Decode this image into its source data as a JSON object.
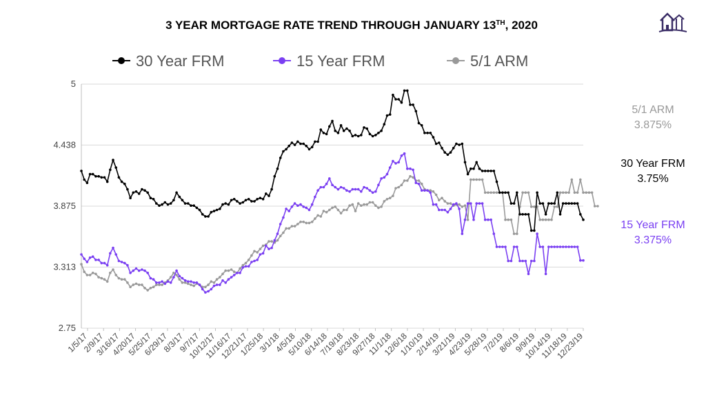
{
  "title": {
    "main": "3 YEAR MORTGAGE RATE TREND THROUGH JANUARY 13",
    "sup": "TH",
    "tail": ", 2020"
  },
  "logo_icon": "house-logo-icon",
  "colors": {
    "series_30": "#000000",
    "series_15": "#7a3ff2",
    "series_arm": "#999999",
    "grid": "#d9d9d9"
  },
  "side_labels": [
    {
      "name": "5/1 ARM",
      "value": "3.875%",
      "color": "#999999"
    },
    {
      "name": "30 Year FRM",
      "value": "3.75%",
      "color": "#000000"
    },
    {
      "name": "15 Year FRM",
      "value": "3.375%",
      "color": "#7a3ff2"
    }
  ],
  "chart_data": {
    "type": "line",
    "title": "3 YEAR MORTGAGE RATE TREND THROUGH JANUARY 13TH, 2020",
    "xlabel": "",
    "ylabel": "",
    "ylim": [
      2.75,
      5
    ],
    "yticks": [
      "5",
      "4.438",
      "3.875",
      "3.313",
      "2.75"
    ],
    "grid": "horizontal",
    "legend": "top",
    "x_tick_labels": [
      "1/5/17",
      "2/9/17",
      "3/16/17",
      "4/20/17",
      "5/25/17",
      "6/29/17",
      "8/3/17",
      "9/7/17",
      "10/12/17",
      "11/16/17",
      "12/21/17",
      "1/25/18",
      "3/1/18",
      "4/5/18",
      "5/10/18",
      "6/14/18",
      "7/19/18",
      "8/23/18",
      "9/27/18",
      "11/1/18",
      "12/6/18",
      "1/10/19",
      "2/14/19",
      "3/21/19",
      "4/23/19",
      "5/28/19",
      "7/2/19",
      "8/6/19",
      "9/9/19",
      "10/14/19",
      "11/18/19",
      "12/23/19"
    ],
    "series": [
      {
        "name": "30 Year FRM",
        "color": "#000000",
        "values": [
          4.2,
          4.12,
          4.09,
          4.17,
          4.17,
          4.15,
          4.15,
          4.14,
          4.14,
          4.1,
          4.21,
          4.3,
          4.23,
          4.14,
          4.1,
          4.08,
          4.03,
          3.95,
          4.0,
          4.01,
          3.99,
          4.03,
          4.02,
          4.0,
          3.95,
          3.94,
          3.9,
          3.88,
          3.89,
          3.91,
          3.89,
          3.9,
          3.93,
          4.0,
          3.96,
          3.93,
          3.9,
          3.9,
          3.88,
          3.88,
          3.86,
          3.84,
          3.8,
          3.78,
          3.78,
          3.82,
          3.83,
          3.84,
          3.85,
          3.89,
          3.9,
          3.89,
          3.93,
          3.94,
          3.92,
          3.9,
          3.91,
          3.93,
          3.94,
          3.92,
          3.92,
          3.94,
          3.95,
          3.94,
          3.99,
          3.97,
          4.03,
          4.15,
          4.22,
          4.32,
          4.38,
          4.4,
          4.43,
          4.46,
          4.44,
          4.47,
          4.45,
          4.45,
          4.43,
          4.4,
          4.42,
          4.47,
          4.47,
          4.58,
          4.55,
          4.54,
          4.61,
          4.66,
          4.57,
          4.55,
          4.62,
          4.57,
          4.59,
          4.57,
          4.52,
          4.53,
          4.52,
          4.53,
          4.6,
          4.59,
          4.54,
          4.52,
          4.53,
          4.55,
          4.57,
          4.63,
          4.71,
          4.72,
          4.9,
          4.86,
          4.86,
          4.83,
          4.94,
          4.94,
          4.81,
          4.81,
          4.75,
          4.64,
          4.62,
          4.55,
          4.55,
          4.55,
          4.51,
          4.45,
          4.46,
          4.41,
          4.37,
          4.35,
          4.37,
          4.41,
          4.45,
          4.44,
          4.45,
          4.28,
          4.17,
          4.22,
          4.22,
          4.28,
          4.22,
          4.2,
          4.2,
          4.2,
          4.2,
          4.2,
          4.1,
          4.0,
          4.0,
          4.0,
          4.0,
          3.9,
          3.9,
          4.0,
          3.8,
          3.8,
          3.8,
          3.8,
          3.65,
          3.65,
          4.0,
          3.9,
          3.9,
          3.8,
          3.9,
          3.9,
          3.9,
          4.0,
          3.8,
          3.9,
          3.9,
          3.9,
          3.9,
          3.9,
          3.9,
          3.8,
          3.75
        ]
      },
      {
        "name": "15 Year FRM",
        "color": "#7a3ff2",
        "values": [
          3.43,
          3.39,
          3.36,
          3.4,
          3.41,
          3.38,
          3.38,
          3.35,
          3.35,
          3.33,
          3.44,
          3.49,
          3.43,
          3.37,
          3.36,
          3.35,
          3.33,
          3.26,
          3.28,
          3.3,
          3.28,
          3.29,
          3.28,
          3.26,
          3.21,
          3.2,
          3.17,
          3.17,
          3.18,
          3.16,
          3.18,
          3.17,
          3.22,
          3.28,
          3.23,
          3.21,
          3.19,
          3.18,
          3.18,
          3.17,
          3.17,
          3.15,
          3.11,
          3.08,
          3.09,
          3.11,
          3.14,
          3.15,
          3.15,
          3.19,
          3.17,
          3.2,
          3.22,
          3.24,
          3.26,
          3.26,
          3.31,
          3.32,
          3.32,
          3.36,
          3.37,
          3.38,
          3.43,
          3.44,
          3.51,
          3.48,
          3.49,
          3.56,
          3.62,
          3.71,
          3.77,
          3.85,
          3.83,
          3.87,
          3.9,
          3.88,
          3.89,
          3.87,
          3.86,
          3.84,
          3.89,
          3.96,
          4.02,
          4.05,
          4.05,
          4.08,
          4.13,
          4.07,
          4.05,
          4.03,
          4.05,
          4.04,
          4.02,
          4.01,
          4.03,
          4.03,
          4.03,
          4.01,
          4.05,
          4.04,
          4.02,
          4.0,
          4.01,
          4.07,
          4.13,
          4.14,
          4.17,
          4.23,
          4.29,
          4.27,
          4.28,
          4.34,
          4.36,
          4.22,
          4.22,
          4.21,
          4.09,
          4.08,
          4.02,
          4.02,
          4.02,
          4.0,
          3.89,
          3.89,
          3.84,
          3.84,
          3.84,
          3.82,
          3.85,
          3.89,
          3.9,
          3.85,
          3.62,
          3.75,
          3.9,
          3.9,
          3.75,
          3.9,
          3.9,
          3.9,
          3.75,
          3.75,
          3.75,
          3.62,
          3.5,
          3.5,
          3.5,
          3.5,
          3.37,
          3.37,
          3.5,
          3.5,
          3.37,
          3.37,
          3.37,
          3.25,
          3.37,
          3.37,
          3.62,
          3.5,
          3.5,
          3.25,
          3.5,
          3.5,
          3.5,
          3.5,
          3.5,
          3.5,
          3.5,
          3.5,
          3.5,
          3.5,
          3.5,
          3.375,
          3.375
        ]
      },
      {
        "name": "5/1 ARM",
        "color": "#999999",
        "values": [
          3.34,
          3.27,
          3.24,
          3.24,
          3.26,
          3.25,
          3.22,
          3.21,
          3.2,
          3.18,
          3.26,
          3.29,
          3.24,
          3.21,
          3.2,
          3.2,
          3.17,
          3.13,
          3.15,
          3.16,
          3.15,
          3.15,
          3.12,
          3.1,
          3.12,
          3.13,
          3.15,
          3.15,
          3.15,
          3.17,
          3.19,
          3.22,
          3.26,
          3.24,
          3.2,
          3.17,
          3.17,
          3.16,
          3.15,
          3.14,
          3.16,
          3.15,
          3.13,
          3.13,
          3.15,
          3.18,
          3.17,
          3.2,
          3.22,
          3.25,
          3.28,
          3.28,
          3.29,
          3.27,
          3.26,
          3.3,
          3.33,
          3.35,
          3.38,
          3.42,
          3.46,
          3.45,
          3.48,
          3.51,
          3.52,
          3.55,
          3.55,
          3.54,
          3.56,
          3.6,
          3.63,
          3.67,
          3.67,
          3.69,
          3.69,
          3.71,
          3.73,
          3.73,
          3.72,
          3.72,
          3.73,
          3.76,
          3.79,
          3.78,
          3.83,
          3.82,
          3.84,
          3.86,
          3.87,
          3.84,
          3.81,
          3.84,
          3.84,
          3.88,
          3.89,
          3.83,
          3.9,
          3.88,
          3.89,
          3.89,
          3.91,
          3.91,
          3.88,
          3.86,
          3.87,
          3.92,
          3.94,
          3.95,
          3.97,
          4.04,
          4.05,
          4.07,
          4.11,
          4.11,
          4.15,
          4.14,
          4.11,
          4.11,
          4.08,
          4.03,
          4.02,
          4.02,
          4.01,
          3.98,
          3.93,
          3.95,
          3.92,
          3.9,
          3.9,
          3.88,
          3.89,
          3.89,
          3.87,
          3.88,
          3.75,
          4.12,
          4.12,
          4.12,
          4.12,
          4.12,
          4.0,
          4.0,
          4.0,
          4.0,
          4.0,
          4.0,
          4.0,
          3.75,
          3.75,
          3.75,
          3.62,
          3.62,
          3.87,
          4.0,
          4.0,
          4.0,
          3.87,
          3.87,
          3.87,
          3.75,
          3.75,
          3.75,
          3.75,
          3.75,
          3.87,
          3.87,
          4.0,
          4.0,
          4.0,
          4.0,
          4.12,
          4.0,
          4.0,
          4.12,
          4.0,
          4.0,
          4.0,
          4.0,
          3.875,
          3.875
        ]
      }
    ]
  }
}
